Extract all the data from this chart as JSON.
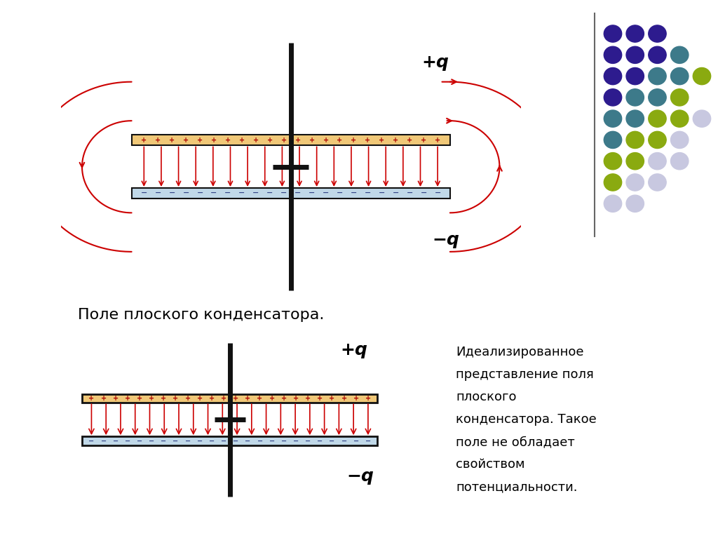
{
  "bg_color": "#FFFFFF",
  "diagram_bg": "#F5EDD8",
  "plate_top_color": "#F0C878",
  "plate_bot_color": "#C0D8E8",
  "plate_border": "#111111",
  "arrow_color": "#CC0000",
  "pole_color": "#111111",
  "caption1": "Поле плоского конденсатора.",
  "caption2_lines": [
    "Идеализированное",
    "представление поля",
    "плоского",
    "конденсатора. Такое",
    "поле не обладает",
    "свойством",
    "потенциальности."
  ],
  "label_plus": "+q",
  "label_minus": "−q",
  "dot_grid": [
    [
      "#2d1b8e",
      "#2d1b8e",
      "#2d1b8e"
    ],
    [
      "#2d1b8e",
      "#2d1b8e",
      "#2d1b8e",
      "#3d7a8a"
    ],
    [
      "#2d1b8e",
      "#2d1b8e",
      "#3d7a8a",
      "#3d7a8a",
      "#8aaa10"
    ],
    [
      "#2d1b8e",
      "#3d7a8a",
      "#3d7a8a",
      "#8aaa10"
    ],
    [
      "#3d7a8a",
      "#3d7a8a",
      "#8aaa10",
      "#8aaa10",
      "#c8c8e0"
    ],
    [
      "#3d7a8a",
      "#8aaa10",
      "#8aaa10",
      "#c8c8e0"
    ],
    [
      "#8aaa10",
      "#8aaa10",
      "#c8c8e0",
      "#c8c8e0"
    ],
    [
      "#8aaa10",
      "#c8c8e0",
      "#c8c8e0"
    ],
    [
      "#c8c8e0",
      "#c8c8e0"
    ]
  ]
}
